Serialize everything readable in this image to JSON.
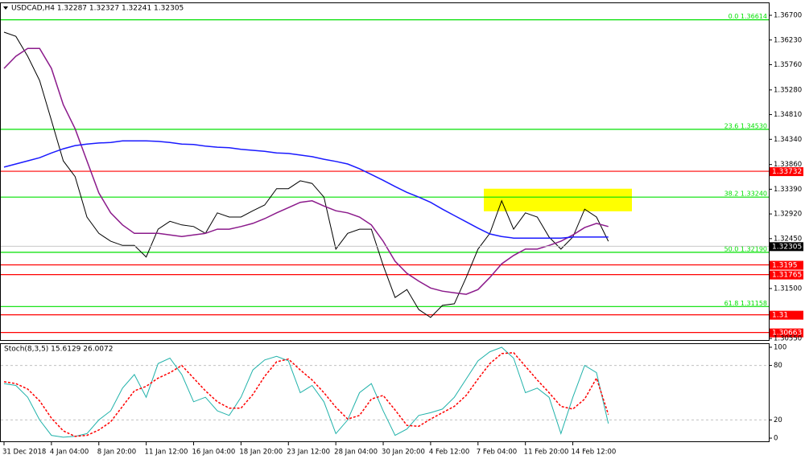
{
  "chart_data": [
    {
      "type": "line",
      "title": "USDCAD,H4 1.32287 1.32327 1.32241 1.32305",
      "categories": [
        "31 Dec 2018",
        null,
        null,
        null,
        "4 Jan 04:00",
        null,
        null,
        null,
        "8 Jan 20:00",
        null,
        null,
        null,
        "11 Jan 12:00",
        null,
        null,
        null,
        "16 Jan 04:00",
        null,
        null,
        null,
        "18 Jan 20:00",
        null,
        null,
        null,
        "23 Jan 12:00",
        null,
        null,
        null,
        "28 Jan 04:00",
        null,
        null,
        null,
        "30 Jan 20:00",
        null,
        null,
        null,
        "4 Feb 12:00",
        null,
        null,
        null,
        "7 Feb 04:00",
        null,
        null,
        null,
        "11 Feb 20:00",
        null,
        null,
        null,
        "14 Feb 12:00",
        null,
        null,
        null
      ],
      "series": [
        {
          "color": "#000000",
          "values": [
            1.3638,
            1.363,
            1.3592,
            1.3546,
            1.347,
            1.3393,
            1.3363,
            1.3286,
            1.3255,
            1.324,
            1.3232,
            1.3232,
            1.321,
            1.3263,
            1.3278,
            1.3271,
            1.3268,
            1.3255,
            1.3294,
            1.3286,
            1.3286,
            1.3298,
            1.3309,
            1.334,
            1.334,
            1.3355,
            1.335,
            1.3324,
            1.3225,
            1.3255,
            1.3263,
            1.3263,
            1.3194,
            1.3133,
            1.3148,
            1.311,
            1.3095,
            1.3118,
            1.3121,
            1.3171,
            1.3225,
            1.3255,
            1.3317,
            1.3263,
            1.3294,
            1.3286,
            1.3248,
            1.3225,
            1.3248,
            1.3301,
            1.3286,
            1.324
          ]
        },
        {
          "color": "#8b1a8b",
          "values": [
            1.3569,
            1.3592,
            1.3607,
            1.3607,
            1.3569,
            1.35,
            1.3454,
            1.3393,
            1.3332,
            1.3294,
            1.3271,
            1.3255,
            1.3255,
            1.3255,
            1.3252,
            1.3249,
            1.3252,
            1.3255,
            1.3263,
            1.3263,
            1.3268,
            1.3274,
            1.3283,
            1.3294,
            1.3304,
            1.3314,
            1.3317,
            1.3307,
            1.3298,
            1.3294,
            1.3286,
            1.3271,
            1.324,
            1.3202,
            1.3179,
            1.3164,
            1.3151,
            1.3145,
            1.3142,
            1.3139,
            1.3148,
            1.3171,
            1.3197,
            1.3213,
            1.3225,
            1.3225,
            1.3232,
            1.324,
            1.3252,
            1.3266,
            1.3274,
            1.3268
          ]
        },
        {
          "color": "#1a1aff",
          "values": [
            1.3381,
            1.3387,
            1.3393,
            1.3399,
            1.3408,
            1.3416,
            1.3422,
            1.3425,
            1.3427,
            1.3428,
            1.3431,
            1.3431,
            1.3431,
            1.343,
            1.3428,
            1.3425,
            1.3424,
            1.3421,
            1.3419,
            1.3418,
            1.3415,
            1.3413,
            1.3411,
            1.3408,
            1.3407,
            1.3404,
            1.3401,
            1.3396,
            1.3392,
            1.3387,
            1.3378,
            1.3367,
            1.3356,
            1.3344,
            1.3333,
            1.3324,
            1.3314,
            1.3301,
            1.3289,
            1.3277,
            1.3265,
            1.3254,
            1.3249,
            1.3246,
            1.3246,
            1.3246,
            1.3246,
            1.3246,
            1.3248,
            1.3248,
            1.3248,
            1.3248
          ]
        }
      ],
      "ylim": [
        1.3052,
        1.3693
      ],
      "yticks": [
        {
          "value": 1.367,
          "label": "1.36700"
        },
        {
          "value": 1.3623,
          "label": "1.36230"
        },
        {
          "value": 1.3576,
          "label": "1.35760"
        },
        {
          "value": 1.3528,
          "label": "1.35280"
        },
        {
          "value": 1.3481,
          "label": "1.34810"
        },
        {
          "value": 1.3434,
          "label": "1.34340"
        },
        {
          "value": 1.3386,
          "label": "1.33860"
        },
        {
          "value": 1.3339,
          "label": "1.33390"
        },
        {
          "value": 1.3292,
          "label": "1.32920"
        },
        {
          "value": 1.3245,
          "label": "1.32450"
        },
        {
          "value": 1.315,
          "label": "1.31500"
        },
        {
          "value": 1.3055,
          "label": "1.30550"
        }
      ],
      "levels": [
        {
          "value": 1.36614,
          "label": "0.0 1.36614",
          "color": "#00e000"
        },
        {
          "value": 1.3453,
          "label": "23.6 1.34530",
          "color": "#00e000"
        },
        {
          "value": 1.3324,
          "label": "38.2 1.33240",
          "color": "#00e000"
        },
        {
          "value": 1.3219,
          "label": "50.0 1.32190",
          "color": "#00e000"
        },
        {
          "value": 1.31158,
          "label": "61.8 1.31158",
          "color": "#00e000"
        },
        {
          "value": 1.33732,
          "color": "#ff0000"
        },
        {
          "value": 1.3195,
          "color": "#ff0000"
        },
        {
          "value": 1.31765,
          "color": "#ff0000"
        },
        {
          "value": 1.31,
          "color": "#ff0000"
        },
        {
          "value": 1.30663,
          "color": "#ff0000"
        }
      ],
      "highlight": {
        "ylim": [
          1.3297,
          1.334
        ],
        "color": "#ffff00"
      },
      "last_price": 1.32305
    },
    {
      "type": "line",
      "title": "Stoch(8,3,5) 15.6129 26.0072",
      "series": [
        {
          "color": "#20b2aa",
          "values": [
            60,
            58,
            45,
            20,
            3,
            1,
            2,
            5,
            20,
            30,
            55,
            70,
            45,
            82,
            88,
            70,
            40,
            45,
            30,
            25,
            45,
            75,
            86,
            90,
            85,
            50,
            58,
            40,
            5,
            20,
            50,
            60,
            30,
            3,
            10,
            25,
            28,
            32,
            45,
            65,
            85,
            95,
            100,
            88,
            50,
            55,
            45,
            5,
            45,
            80,
            72,
            16
          ]
        },
        {
          "color": "#ff0000",
          "dash": true,
          "values": [
            62,
            60,
            54,
            41,
            22,
            8,
            2,
            3,
            9,
            18,
            35,
            52,
            57,
            66,
            72,
            80,
            66,
            52,
            40,
            33,
            33,
            48,
            68,
            84,
            87,
            75,
            64,
            50,
            34,
            21,
            25,
            43,
            47,
            31,
            14,
            13,
            21,
            28,
            35,
            47,
            65,
            82,
            93,
            94,
            79,
            64,
            50,
            35,
            32,
            43,
            66,
            26
          ]
        }
      ],
      "ylim": [
        -3.5,
        103.5
      ],
      "yticks": [
        100,
        80,
        20,
        0
      ],
      "levels": [
        80,
        20
      ]
    }
  ]
}
